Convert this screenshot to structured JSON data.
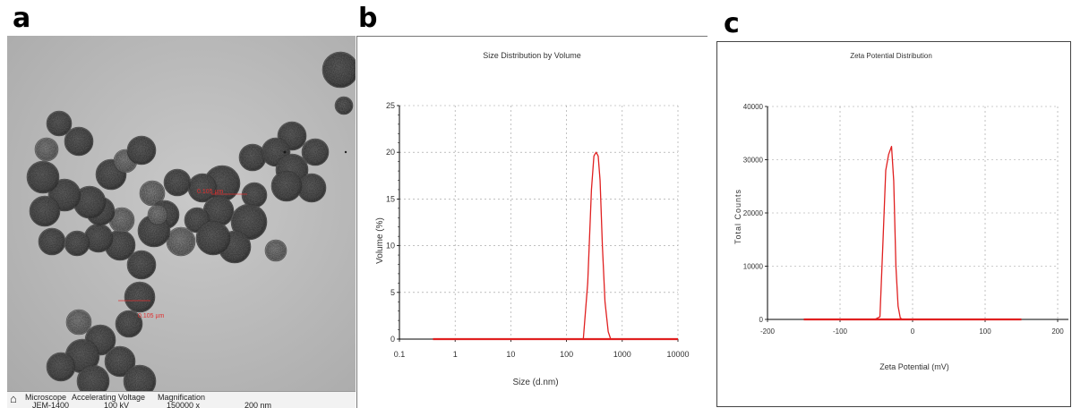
{
  "panels": {
    "a_label": "a",
    "b_label": "b",
    "c_label": "c"
  },
  "micrograph": {
    "measurement_1": "0.105 µm",
    "measurement_2": "0.105 µm",
    "info_headers": [
      "Microscope",
      "Accelerating Voltage",
      "Magnification"
    ],
    "info_values": [
      "JEM-1400",
      "100 kV",
      "150000 x",
      "200 nm"
    ]
  },
  "colors": {
    "curve": "#e02020",
    "grid": "#9a9a9a",
    "axis": "#000000",
    "text": "#333333"
  },
  "chart_data": [
    {
      "type": "line",
      "title": "Size Distribution by Volume",
      "xlabel": "Size (d.nm)",
      "ylabel": "Volume (%)",
      "xscale": "log",
      "xlim": [
        0.1,
        10000
      ],
      "ylim": [
        0,
        25
      ],
      "xticks": [
        0.1,
        1,
        10,
        100,
        1000,
        10000
      ],
      "xtick_labels": [
        "0.1",
        "1",
        "10",
        "100",
        "1000",
        "10000"
      ],
      "yticks": [
        0,
        5,
        10,
        15,
        20,
        25
      ],
      "ytick_labels": [
        "0",
        "5",
        "10",
        "15",
        "20",
        "25"
      ],
      "grid": true,
      "series": [
        {
          "x": [
            0.4,
            1,
            10,
            100,
            200,
            240,
            280,
            310,
            340,
            370,
            400,
            440,
            490,
            560,
            620,
            700,
            1000,
            10000
          ],
          "y": [
            0,
            0,
            0,
            0,
            0,
            6,
            16,
            19.6,
            20,
            19.6,
            17,
            10,
            4,
            0.8,
            0,
            0,
            0,
            0
          ]
        }
      ]
    },
    {
      "type": "line",
      "title": "Zeta Potential Distribution",
      "xlabel": "Zeta Potential (mV)",
      "ylabel": "Total Counts",
      "xlim": [
        -200,
        200
      ],
      "ylim": [
        0,
        40000
      ],
      "xticks": [
        -200,
        -100,
        0,
        100,
        200
      ],
      "xtick_labels": [
        "-200",
        "-100",
        "0",
        "100",
        "200"
      ],
      "yticks": [
        0,
        10000,
        20000,
        30000,
        40000
      ],
      "ytick_labels": [
        "0",
        "10000",
        "20000",
        "30000",
        "40000"
      ],
      "grid": true,
      "series": [
        {
          "x": [
            -150,
            -60,
            -52,
            -45,
            -41,
            -37,
            -33,
            -29,
            -26,
            -23,
            -20,
            -17,
            -14,
            150
          ],
          "y": [
            0,
            0,
            0,
            500,
            14000,
            28000,
            31000,
            32500,
            26000,
            10000,
            2500,
            300,
            0,
            0
          ]
        }
      ]
    }
  ]
}
